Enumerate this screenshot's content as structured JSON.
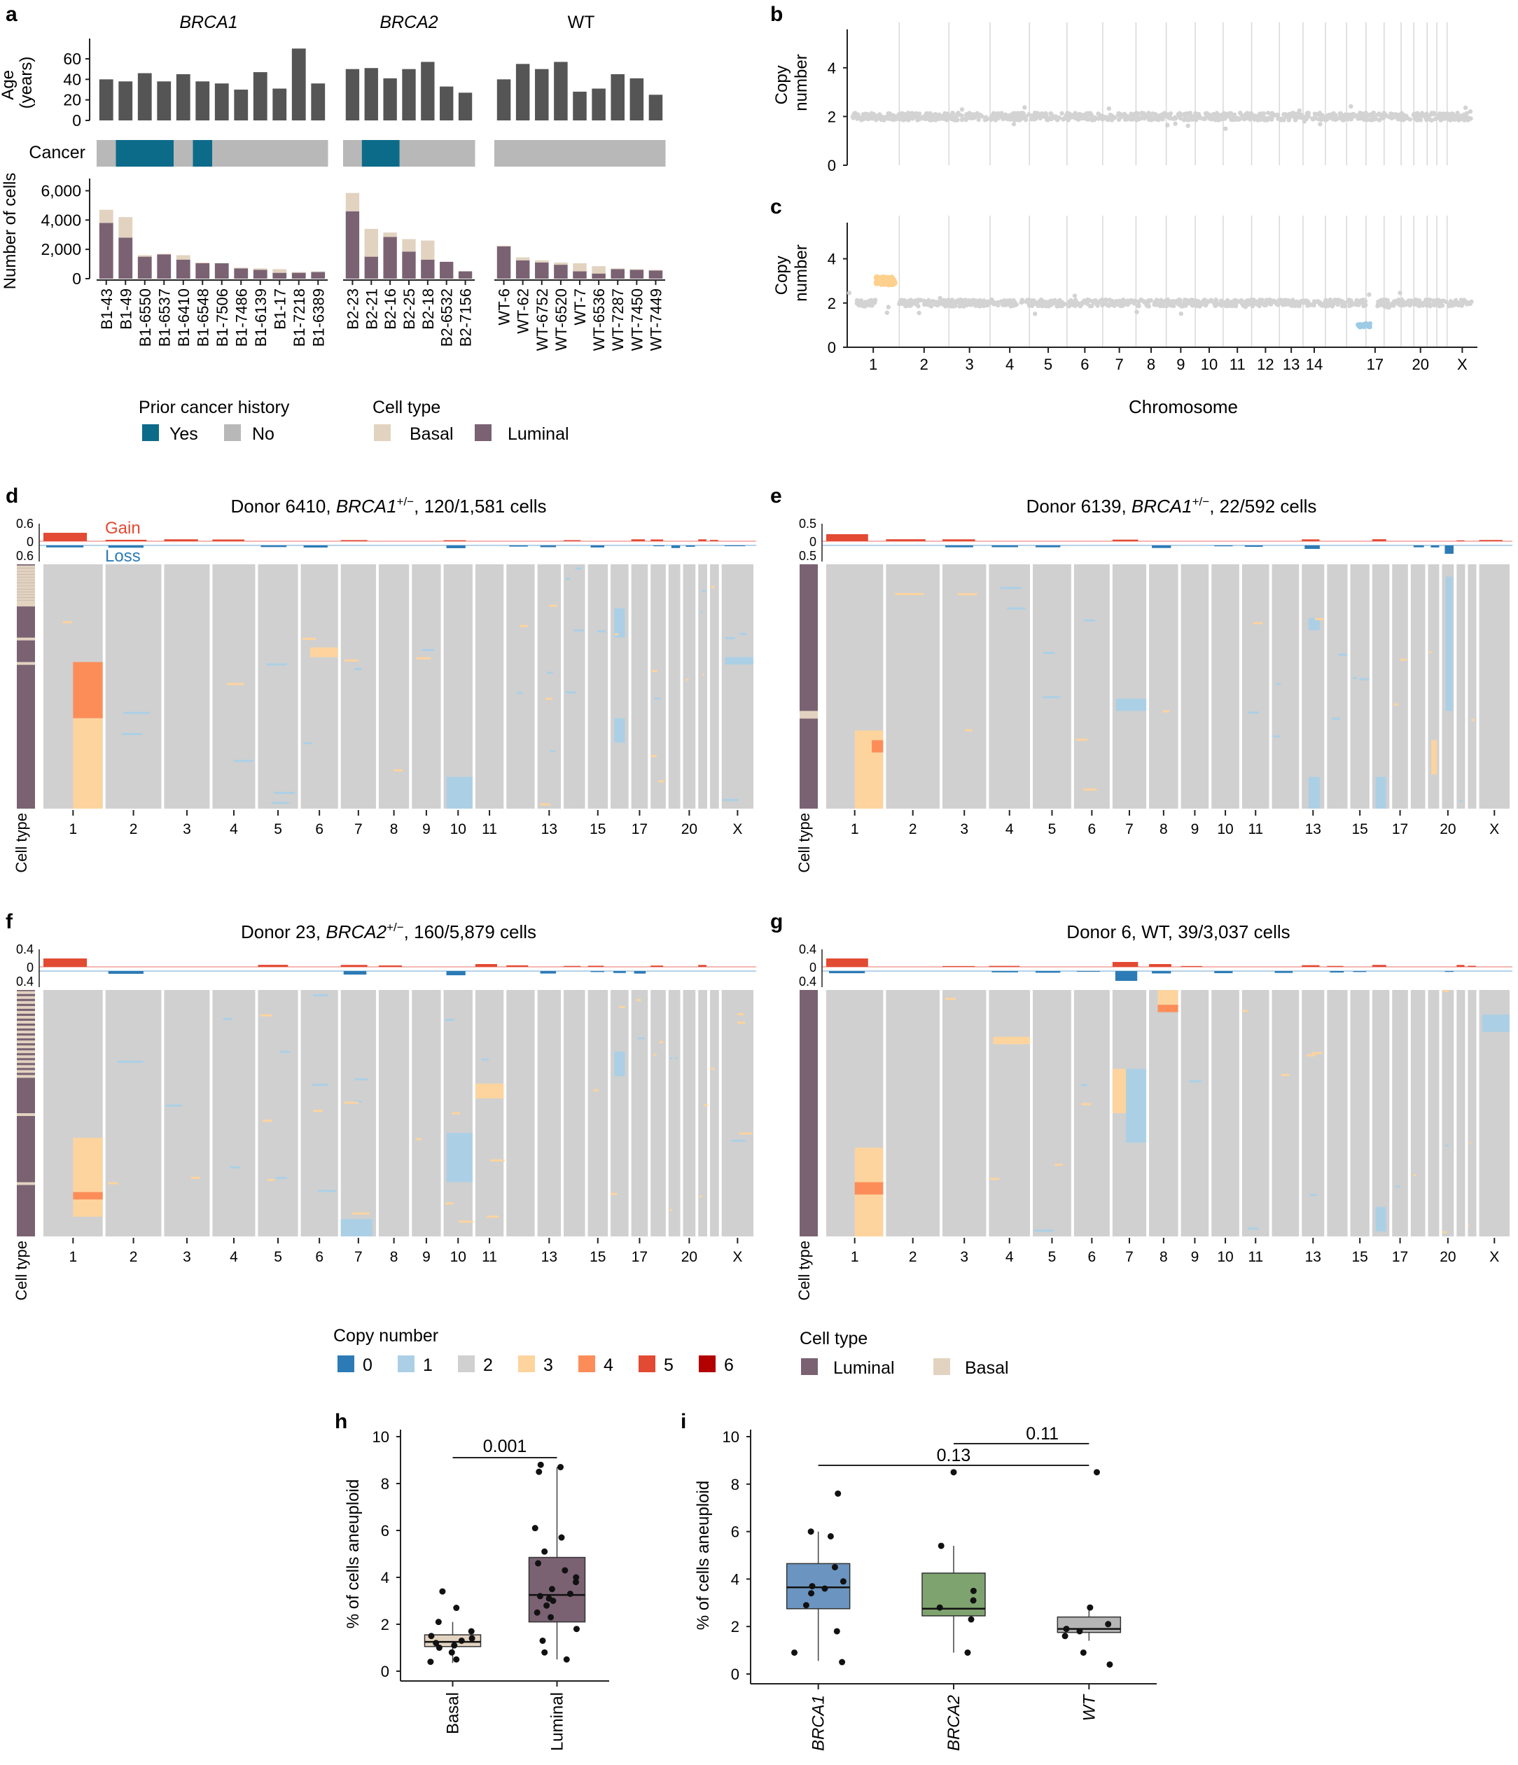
{
  "colors": {
    "age_bar": "#555555",
    "cancer_yes": "#0d6b8a",
    "cancer_no": "#b8b8b8",
    "luminal": "#7a6273",
    "basal": "#e2d3c0",
    "scatter": "#d3d3d3",
    "gain_point": "#fdd08e",
    "loss_point": "#9ccbe6",
    "cn0": "#2c7bb6",
    "cn1": "#abd0e6",
    "cn2": "#d0d0d0",
    "cn3": "#fdd49e",
    "cn4": "#fc8d59",
    "cn5": "#e34a33",
    "cn6": "#b30000",
    "box_basal": "#e2d3c0",
    "box_luminal": "#7a6273",
    "box_brca1": "#6b95c0",
    "box_brca2": "#7fa36e",
    "box_wt": "#b5b5b5"
  },
  "chart_data": [
    {
      "panel": "a",
      "type": "bar",
      "group_titles": [
        "BRCA1",
        "BRCA2",
        "WT"
      ],
      "groups": [
        {
          "name": "BRCA1",
          "donors": [
            "B1-43",
            "B1-49",
            "B1-6550",
            "B1-6537",
            "B1-6410",
            "B1-6548",
            "B1-7506",
            "B1-7486",
            "B1-6139",
            "B1-17",
            "B1-7218",
            "B1-6389"
          ]
        },
        {
          "name": "BRCA2",
          "donors": [
            "B2-23",
            "B2-21",
            "B2-16",
            "B2-25",
            "B2-18",
            "B2-6532",
            "B2-7156"
          ]
        },
        {
          "name": "WT",
          "donors": [
            "WT-6",
            "WT-62",
            "WT-6752",
            "WT-6520",
            "WT-7",
            "WT-6536",
            "WT-7287",
            "WT-7450",
            "WT-7449"
          ]
        }
      ],
      "age": [
        40,
        38,
        46,
        38,
        45,
        38,
        36,
        30,
        47,
        31,
        70,
        36,
        50,
        51,
        41,
        50,
        57,
        33,
        27,
        40,
        55,
        50,
        57,
        28,
        31,
        45,
        41,
        25
      ],
      "cancer": [
        "No",
        "Yes",
        "Yes",
        "Yes",
        "No",
        "Yes",
        "No",
        "No",
        "No",
        "No",
        "No",
        "No",
        "No",
        "Yes",
        "Yes",
        "No",
        "No",
        "No",
        "No",
        "No",
        "No",
        "No",
        "No",
        "No",
        "No",
        "No",
        "No",
        "No"
      ],
      "cells_luminal": [
        3800,
        2800,
        1500,
        1650,
        1300,
        1050,
        1050,
        700,
        600,
        400,
        400,
        450,
        4600,
        1500,
        2850,
        1850,
        1300,
        1150,
        500,
        2200,
        1250,
        1100,
        950,
        500,
        350,
        650,
        600,
        550
      ],
      "cells_basal": [
        900,
        1400,
        100,
        50,
        300,
        50,
        0,
        50,
        100,
        250,
        50,
        50,
        1250,
        1900,
        300,
        850,
        1300,
        0,
        0,
        50,
        200,
        150,
        150,
        550,
        500,
        50,
        50,
        50
      ],
      "age_axis": {
        "label": "Age\n(years)",
        "ticks": [
          "0",
          "20",
          "40",
          "60"
        ],
        "ylim": [
          0,
          75
        ]
      },
      "cancer_label": "Cancer",
      "cells_axis": {
        "label": "Number of cells",
        "ticks": [
          "0",
          "2,000",
          "4,000",
          "6,000"
        ],
        "ylim": [
          0,
          6500
        ]
      },
      "legends": {
        "prior_title": "Prior cancer history",
        "prior_items": [
          "Yes",
          "No"
        ],
        "celltype_title": "Cell type",
        "celltype_items": [
          "Basal",
          "Luminal"
        ]
      }
    },
    {
      "panel": "b",
      "type": "scatter",
      "ylabel": "Copy\nnumber",
      "yticks": [
        "0",
        "2",
        "4"
      ],
      "ylim": [
        0,
        5
      ],
      "baseline": 2,
      "gain_segment": null,
      "loss_segment": null
    },
    {
      "panel": "c",
      "type": "scatter",
      "ylabel": "Copy\nnumber",
      "yticks": [
        "0",
        "2",
        "4"
      ],
      "ylim": [
        0,
        5
      ],
      "xlabel": "Chromosome",
      "xticks": [
        "1",
        "2",
        "3",
        "4",
        "5",
        "6",
        "7",
        "8",
        "9",
        "10",
        "11",
        "12",
        "13",
        "14",
        "17",
        "20",
        "X"
      ],
      "baseline": 2,
      "gain_segment": {
        "chromosome": "1q",
        "copy_number": 3
      },
      "loss_segment": {
        "chromosome": "17",
        "copy_number": 1
      }
    },
    {
      "panel": "d",
      "type": "heatmap",
      "title_prefix": "Donor 6410, ",
      "gene": "BRCA1",
      "sup": "+/−",
      "title_suffix": ", 120/1,581 cells",
      "top_ticks": [
        "0.6",
        "0",
        "0.6"
      ],
      "gain_label": "Gain",
      "loss_label": "Loss"
    },
    {
      "panel": "e",
      "type": "heatmap",
      "title_prefix": "Donor 6139, ",
      "gene": "BRCA1",
      "sup": "+/−",
      "title_suffix": ", 22/592 cells",
      "top_ticks": [
        "0.5",
        "0",
        "0.5"
      ]
    },
    {
      "panel": "f",
      "type": "heatmap",
      "title_prefix": "Donor 23, ",
      "gene": "BRCA2",
      "sup": "+/−",
      "title_suffix": ", 160/5,879 cells",
      "top_ticks": [
        "0.4",
        "0",
        "0.4"
      ]
    },
    {
      "panel": "g",
      "type": "heatmap",
      "title_prefix": "Donor 6, WT, 39/3,037 cells",
      "gene": "",
      "sup": "",
      "title_suffix": "",
      "top_ticks": [
        "0.4",
        "0",
        "0.4"
      ]
    },
    {
      "panel": "h",
      "type": "box",
      "ylabel": "% of cells aneuploid",
      "yticks": [
        "0",
        "2",
        "4",
        "6",
        "8",
        "10"
      ],
      "ylim": [
        0,
        10
      ],
      "categories": [
        "Basal",
        "Luminal"
      ],
      "boxes": [
        {
          "q1": 1.05,
          "median": 1.25,
          "q3": 1.55,
          "lo": 0.35,
          "hi": 2.1
        },
        {
          "q1": 2.1,
          "median": 3.25,
          "q3": 4.85,
          "lo": 0.5,
          "hi": 8.7
        }
      ],
      "points": [
        [
          0.4,
          0.5,
          0.8,
          1.0,
          1.1,
          1.2,
          1.3,
          1.4,
          1.5,
          1.7,
          2.1,
          2.7,
          3.4
        ],
        [
          0.5,
          0.8,
          1.3,
          1.8,
          2.3,
          2.5,
          2.8,
          3.0,
          3.1,
          3.2,
          3.3,
          3.5,
          3.8,
          4.0,
          4.3,
          4.6,
          5.1,
          5.7,
          6.1,
          8.5,
          8.7,
          8.8
        ]
      ],
      "pvalue": "0.001"
    },
    {
      "panel": "i",
      "type": "box",
      "ylabel": "% of cells aneuploid",
      "yticks": [
        "0",
        "2",
        "4",
        "6",
        "8",
        "10"
      ],
      "ylim": [
        0,
        10
      ],
      "categories": [
        "BRCA1",
        "BRCA2",
        "WT"
      ],
      "boxes": [
        {
          "q1": 2.75,
          "median": 3.65,
          "q3": 4.65,
          "lo": 0.55,
          "hi": 6.0
        },
        {
          "q1": 2.45,
          "median": 2.75,
          "q3": 4.25,
          "lo": 0.9,
          "hi": 5.4
        },
        {
          "q1": 1.75,
          "median": 1.9,
          "q3": 2.4,
          "lo": 1.4,
          "hi": 2.8
        }
      ],
      "points": [
        [
          0.5,
          0.9,
          1.8,
          2.9,
          3.4,
          3.6,
          3.7,
          3.9,
          4.5,
          5.8,
          6.0,
          7.6
        ],
        [
          0.9,
          2.3,
          2.8,
          3.1,
          3.5,
          5.4,
          8.5
        ],
        [
          0.4,
          0.9,
          1.6,
          1.8,
          1.9,
          2.1,
          2.8,
          8.5
        ]
      ],
      "pvalue_1": "0.11",
      "pvalue_2": "0.13"
    }
  ],
  "legend_copy_number": {
    "title": "Copy number",
    "items": [
      "0",
      "1",
      "2",
      "3",
      "4",
      "5",
      "6"
    ]
  },
  "legend_cell_type": {
    "title": "Cell type",
    "items": [
      "Luminal",
      "Basal"
    ]
  },
  "heatmap_xticks": [
    "1",
    "2",
    "3",
    "4",
    "5",
    "6",
    "7",
    "8",
    "9",
    "10",
    "11",
    "13",
    "15",
    "17",
    "20",
    "X"
  ],
  "cell_type_label": "Cell type",
  "panel_letters": [
    "a",
    "b",
    "c",
    "d",
    "e",
    "f",
    "g",
    "h",
    "i"
  ]
}
